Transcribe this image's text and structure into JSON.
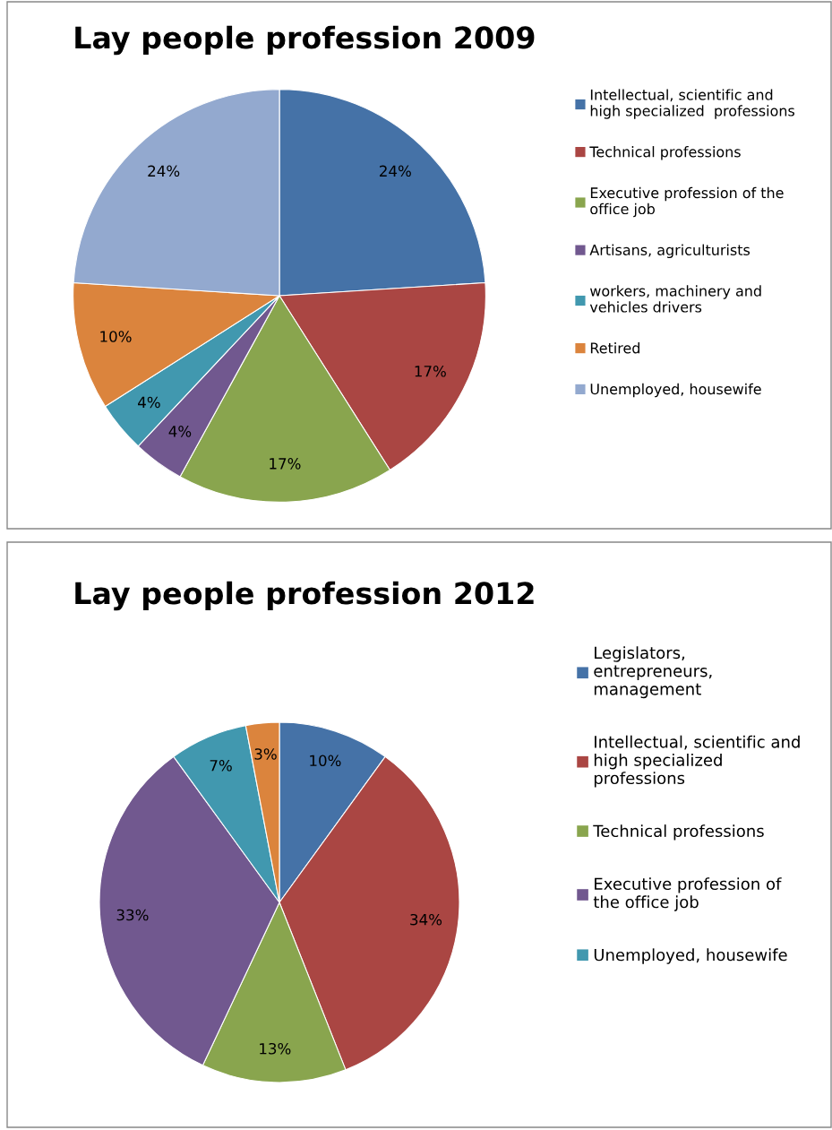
{
  "chart_data": [
    {
      "type": "pie",
      "title": "Lay people profession 2009",
      "legend": "right",
      "categories": [
        "Intellectual, scientific and\nhigh specialized  professions",
        "Technical professions",
        "Executive profession of the\noffice job",
        "Artisans, agriculturists",
        "workers, machinery and\nvehicles drivers",
        "Retired",
        "Unemployed, housewife"
      ],
      "values": [
        24,
        17,
        17,
        4,
        4,
        10,
        24
      ],
      "value_labels": [
        "24%",
        "17%",
        "17%",
        "4%",
        "4%",
        "10%",
        "24%"
      ],
      "colors": [
        "#4572a7",
        "#aa4643",
        "#89a54e",
        "#71588f",
        "#4198af",
        "#db843d",
        "#93a9cf"
      ]
    },
    {
      "type": "pie",
      "title": "Lay people profession 2012",
      "legend": "right",
      "categories": [
        "Legislators,\nentrepreneurs,\nmanagement",
        "Intellectual, scientific and\nhigh specialized\nprofessions",
        "Technical professions",
        "Executive profession of\nthe office job",
        "Unemployed, housewife",
        null
      ],
      "values": [
        10,
        34,
        13,
        33,
        7,
        3
      ],
      "value_labels": [
        "10%",
        "34%",
        "13%",
        "33%",
        "7%",
        "3%"
      ],
      "colors": [
        "#4572a7",
        "#aa4643",
        "#89a54e",
        "#71588f",
        "#4198af",
        "#db843d"
      ]
    }
  ]
}
